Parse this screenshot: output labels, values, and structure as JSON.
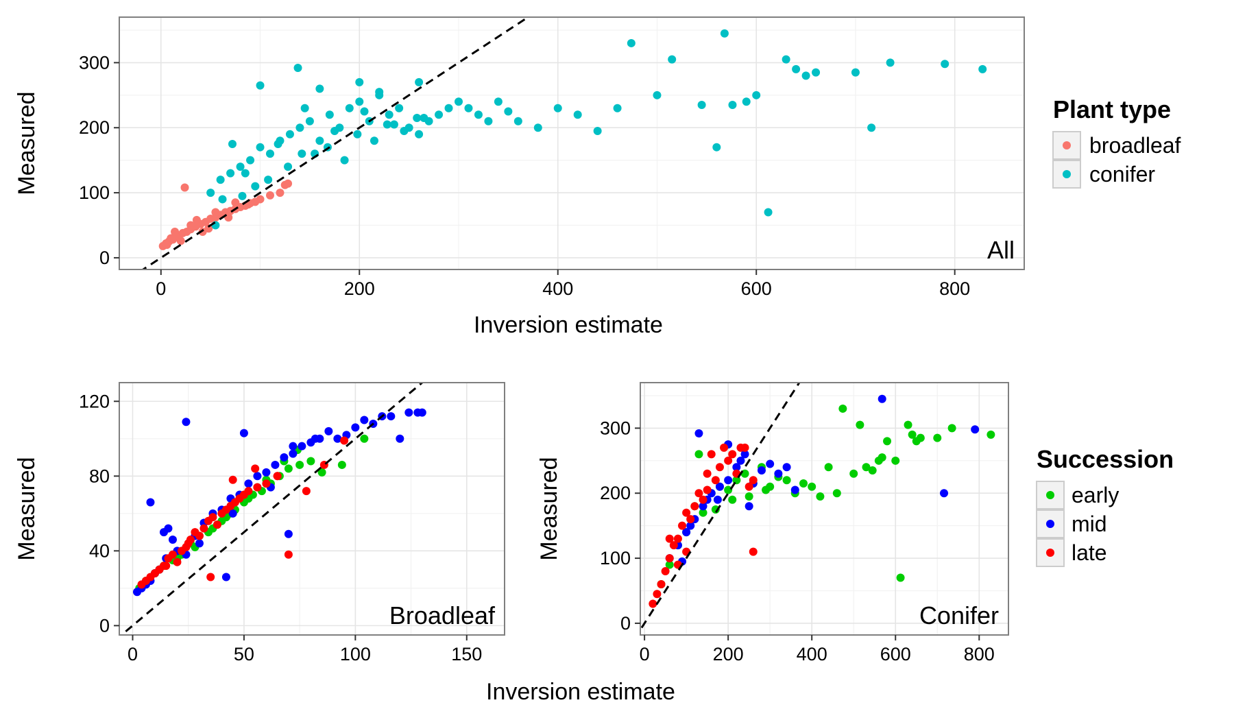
{
  "legends": {
    "plant_type": {
      "title": "Plant type",
      "items": [
        {
          "label": "broadleaf",
          "color": "#F8766D"
        },
        {
          "label": "conifer",
          "color": "#00BFC4"
        }
      ]
    },
    "succession": {
      "title": "Succession",
      "items": [
        {
          "label": "early",
          "color": "#00CD00"
        },
        {
          "label": "mid",
          "color": "#0000FF"
        },
        {
          "label": "late",
          "color": "#FF0000"
        }
      ]
    }
  },
  "chart_data": [
    {
      "type": "scatter",
      "panel_label": "All",
      "xlabel": "Inversion estimate",
      "ylabel": "Measured",
      "xlim": [
        -42,
        870
      ],
      "ylim": [
        -18,
        370
      ],
      "xticks": [
        0,
        200,
        400,
        600,
        800
      ],
      "yticks": [
        0,
        100,
        200,
        300
      ],
      "grid": true,
      "reference_line": "y = x",
      "color_by": "Plant type",
      "series": [
        {
          "name": "broadleaf",
          "color": "#F8766D",
          "x": [
            2,
            5,
            8,
            12,
            15,
            18,
            22,
            26,
            30,
            35,
            40,
            45,
            50,
            55,
            60,
            65,
            70,
            75,
            80,
            85,
            90,
            95,
            100,
            110,
            120,
            125,
            128,
            24,
            10,
            30,
            42,
            55,
            68,
            75,
            48,
            36,
            20,
            14,
            6,
            88
          ],
          "y": [
            18,
            22,
            25,
            28,
            32,
            34,
            38,
            40,
            44,
            48,
            52,
            55,
            60,
            62,
            66,
            70,
            72,
            75,
            78,
            80,
            84,
            86,
            90,
            96,
            100,
            112,
            114,
            108,
            30,
            50,
            40,
            70,
            62,
            85,
            45,
            58,
            26,
            40,
            20,
            82
          ]
        },
        {
          "name": "conifer",
          "color": "#00BFC4",
          "x": [
            50,
            60,
            70,
            80,
            90,
            100,
            110,
            120,
            130,
            140,
            150,
            160,
            170,
            180,
            190,
            200,
            210,
            220,
            230,
            240,
            250,
            260,
            270,
            280,
            290,
            300,
            310,
            320,
            330,
            340,
            350,
            360,
            380,
            400,
            420,
            440,
            460,
            474,
            500,
            515,
            545,
            560,
            568,
            576,
            590,
            600,
            612,
            630,
            640,
            650,
            660,
            700,
            716,
            735,
            790,
            828,
            100,
            138,
            160,
            200,
            220,
            260,
            72,
            85,
            118,
            145,
            175,
            205,
            235,
            265,
            95,
            128,
            155,
            185,
            215,
            245,
            62,
            108,
            142,
            168,
            198,
            228,
            258,
            55,
            82
          ],
          "y": [
            100,
            120,
            130,
            140,
            150,
            170,
            160,
            180,
            190,
            200,
            210,
            180,
            220,
            200,
            230,
            240,
            210,
            250,
            220,
            230,
            200,
            190,
            210,
            220,
            230,
            240,
            230,
            220,
            210,
            240,
            225,
            210,
            200,
            230,
            220,
            195,
            230,
            330,
            250,
            305,
            235,
            170,
            345,
            235,
            240,
            250,
            70,
            305,
            290,
            280,
            285,
            285,
            200,
            300,
            298,
            290,
            265,
            292,
            260,
            270,
            255,
            270,
            175,
            130,
            175,
            230,
            195,
            225,
            205,
            215,
            110,
            140,
            160,
            150,
            180,
            195,
            90,
            120,
            160,
            170,
            190,
            205,
            215,
            50,
            95
          ]
        }
      ]
    },
    {
      "type": "scatter",
      "panel_label": "Broadleaf",
      "xlabel": "",
      "ylabel": "Measured",
      "xlim": [
        -6,
        167
      ],
      "ylim": [
        -5,
        130
      ],
      "xticks": [
        0,
        50,
        100,
        150
      ],
      "yticks": [
        0,
        40,
        80,
        120
      ],
      "grid": true,
      "reference_line": "y = x",
      "color_by": "Succession",
      "series": [
        {
          "name": "early",
          "color": "#00CD00",
          "x": [
            3,
            6,
            10,
            14,
            18,
            22,
            26,
            30,
            34,
            38,
            42,
            46,
            50,
            54,
            58,
            62,
            66,
            70,
            75,
            80,
            85,
            94,
            104,
            12,
            28,
            36,
            44,
            52,
            60,
            68,
            74,
            20,
            40,
            56
          ],
          "y": [
            20,
            24,
            28,
            32,
            35,
            38,
            44,
            48,
            50,
            54,
            58,
            62,
            66,
            70,
            72,
            76,
            80,
            84,
            86,
            88,
            82,
            86,
            100,
            30,
            42,
            52,
            60,
            68,
            78,
            88,
            94,
            36,
            56,
            74
          ]
        },
        {
          "name": "mid",
          "color": "#0000FF",
          "x": [
            2,
            4,
            6,
            8,
            10,
            12,
            14,
            16,
            18,
            20,
            24,
            28,
            32,
            36,
            40,
            44,
            48,
            52,
            56,
            60,
            64,
            68,
            72,
            76,
            80,
            84,
            88,
            92,
            96,
            100,
            104,
            108,
            112,
            116,
            120,
            124,
            128,
            130,
            24,
            8,
            50,
            42,
            70,
            82,
            15,
            30,
            45,
            62,
            72
          ],
          "y": [
            18,
            20,
            22,
            24,
            28,
            30,
            50,
            52,
            46,
            40,
            38,
            48,
            55,
            60,
            62,
            68,
            70,
            76,
            80,
            82,
            86,
            90,
            92,
            96,
            98,
            100,
            104,
            100,
            102,
            106,
            110,
            108,
            112,
            112,
            100,
            114,
            114,
            114,
            109,
            66,
            103,
            26,
            49,
            100,
            36,
            44,
            60,
            74,
            96
          ]
        },
        {
          "name": "late",
          "color": "#FF0000",
          "x": [
            4,
            6,
            8,
            10,
            12,
            14,
            16,
            18,
            20,
            22,
            24,
            26,
            28,
            30,
            32,
            34,
            36,
            38,
            40,
            42,
            44,
            46,
            48,
            50,
            52,
            56,
            60,
            65,
            70,
            78,
            86,
            95,
            35,
            25,
            15,
            45,
            55,
            65
          ],
          "y": [
            22,
            24,
            26,
            28,
            30,
            32,
            36,
            38,
            34,
            40,
            42,
            46,
            50,
            48,
            52,
            56,
            58,
            54,
            60,
            62,
            64,
            66,
            68,
            70,
            72,
            74,
            76,
            80,
            38,
            72,
            86,
            99,
            26,
            44,
            32,
            78,
            84,
            80
          ]
        }
      ]
    },
    {
      "type": "scatter",
      "panel_label": "Conifer",
      "xlabel": "",
      "ylabel": "",
      "xlim": [
        -10,
        870
      ],
      "ylim": [
        -18,
        370
      ],
      "xticks": [
        0,
        200,
        400,
        600,
        800
      ],
      "yticks": [
        0,
        100,
        200,
        300
      ],
      "grid": true,
      "reference_line": "y = x",
      "color_by": "Succession",
      "series": [
        {
          "name": "early",
          "color": "#00CD00",
          "x": [
            40,
            60,
            80,
            100,
            120,
            140,
            160,
            180,
            200,
            220,
            240,
            260,
            280,
            300,
            320,
            340,
            360,
            380,
            400,
            420,
            440,
            460,
            474,
            500,
            515,
            530,
            545,
            560,
            568,
            580,
            600,
            612,
            630,
            640,
            650,
            660,
            700,
            735,
            828,
            130,
            170,
            210,
            250,
            290
          ],
          "y": [
            60,
            90,
            120,
            140,
            180,
            170,
            200,
            210,
            205,
            220,
            230,
            215,
            240,
            210,
            225,
            220,
            200,
            215,
            210,
            195,
            240,
            200,
            330,
            230,
            305,
            240,
            235,
            250,
            255,
            280,
            250,
            70,
            305,
            290,
            280,
            285,
            285,
            300,
            290,
            260,
            175,
            190,
            195,
            205
          ]
        },
        {
          "name": "mid",
          "color": "#0000FF",
          "x": [
            60,
            80,
            100,
            120,
            140,
            160,
            180,
            200,
            220,
            240,
            260,
            280,
            300,
            320,
            340,
            360,
            568,
            716,
            790,
            90,
            130,
            150,
            200,
            230,
            250,
            110,
            175
          ],
          "y": [
            100,
            120,
            140,
            160,
            180,
            200,
            210,
            220,
            240,
            260,
            215,
            235,
            245,
            230,
            240,
            205,
            345,
            200,
            298,
            95,
            292,
            190,
            275,
            250,
            180,
            150,
            190
          ]
        },
        {
          "name": "late",
          "color": "#FF0000",
          "x": [
            20,
            30,
            40,
            50,
            60,
            70,
            80,
            90,
            100,
            110,
            120,
            130,
            140,
            150,
            160,
            170,
            180,
            190,
            200,
            210,
            220,
            230,
            240,
            250,
            260,
            60,
            100,
            150,
            260,
            80
          ],
          "y": [
            30,
            45,
            60,
            80,
            100,
            120,
            130,
            150,
            170,
            160,
            180,
            200,
            190,
            230,
            260,
            220,
            240,
            270,
            250,
            260,
            230,
            270,
            270,
            210,
            220,
            130,
            110,
            205,
            110,
            90
          ]
        }
      ]
    }
  ]
}
